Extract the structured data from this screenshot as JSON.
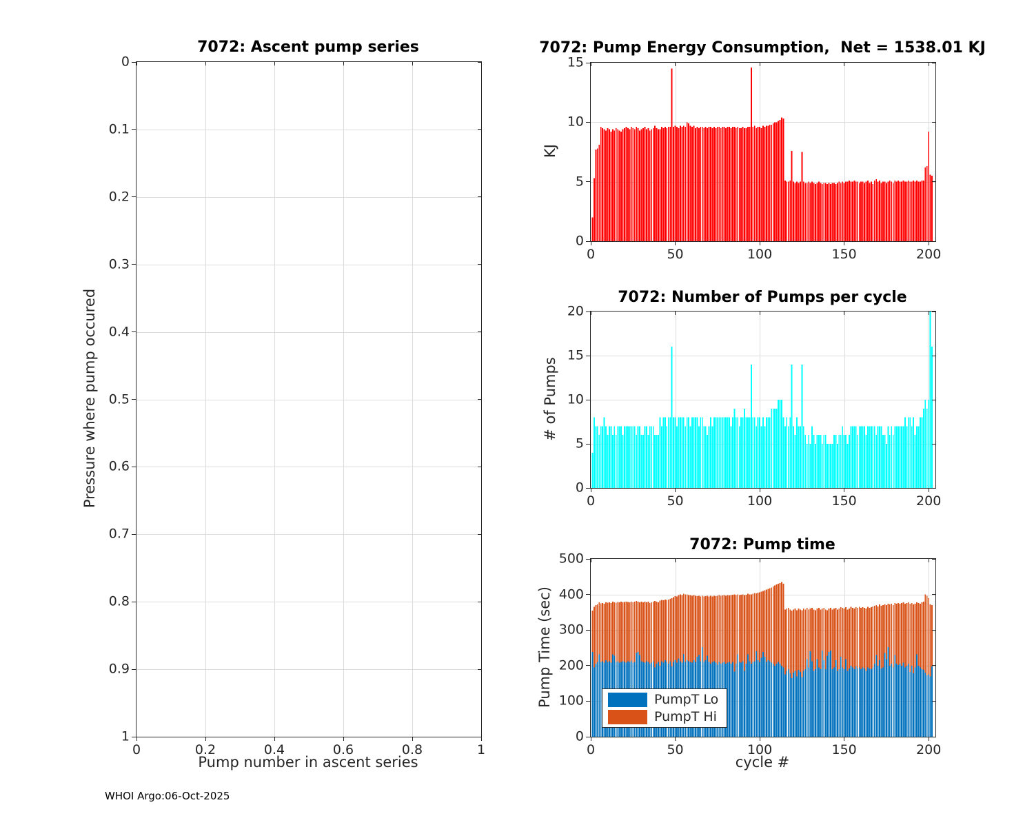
{
  "figure": {
    "footer": "WHOI Argo:06-Oct-2025"
  },
  "colors": {
    "red": "#ff0000",
    "cyan": "#00ffff",
    "blue": "#0072bd",
    "orange": "#d95319",
    "grid": "#dcdcdc",
    "axis": "#262626"
  },
  "chart_data": [
    {
      "id": "ascent",
      "type": "bar",
      "title": "7072: Ascent pump series",
      "xlabel": "Pump number in ascent series",
      "ylabel": "Pressure where pump occured",
      "xlim": [
        0,
        1
      ],
      "ylim": [
        0,
        1
      ],
      "y_reversed": true,
      "grid": true,
      "xticks": [
        0,
        0.2,
        0.4,
        0.6,
        0.8,
        1
      ],
      "yticks": [
        0,
        0.1,
        0.2,
        0.3,
        0.4,
        0.5,
        0.6,
        0.7,
        0.8,
        0.9,
        1
      ],
      "values": []
    },
    {
      "id": "energy",
      "type": "bar",
      "title": "7072: Pump Energy Consumption,  Net = 1538.01 KJ",
      "xlabel": "",
      "ylabel": "KJ",
      "color": "#ff0000",
      "xlim": [
        0,
        204
      ],
      "ylim": [
        0,
        15
      ],
      "grid": true,
      "xticks": [
        0,
        50,
        100,
        150,
        200
      ],
      "yticks": [
        0,
        5,
        10,
        15
      ],
      "values": [
        2.0,
        5.3,
        7.7,
        7.8,
        8.1,
        9.6,
        9.5,
        9.4,
        9.3,
        9.5,
        9.4,
        9.2,
        9.4,
        9.3,
        9.5,
        9.4,
        9.3,
        9.2,
        9.4,
        9.5,
        9.6,
        9.5,
        9.4,
        9.6,
        9.5,
        9.4,
        9.6,
        9.5,
        9.3,
        9.4,
        9.5,
        9.6,
        9.4,
        9.5,
        9.3,
        9.4,
        9.5,
        9.7,
        9.5,
        9.4,
        9.4,
        9.6,
        9.5,
        9.6,
        9.5,
        9.6,
        9.6,
        14.5,
        9.6,
        9.7,
        9.6,
        9.5,
        9.7,
        9.6,
        9.7,
        9.6,
        10.0,
        9.9,
        9.7,
        9.6,
        9.7,
        9.5,
        9.6,
        9.5,
        9.6,
        9.6,
        9.5,
        9.6,
        9.5,
        9.6,
        9.6,
        9.5,
        9.6,
        9.5,
        9.6,
        9.6,
        9.5,
        9.6,
        9.6,
        9.5,
        9.6,
        9.6,
        9.5,
        9.6,
        9.6,
        9.5,
        9.6,
        9.5,
        9.5,
        9.6,
        9.5,
        9.5,
        9.6,
        9.6,
        14.6,
        9.6,
        9.7,
        9.5,
        9.6,
        9.6,
        9.5,
        9.7,
        9.6,
        9.7,
        9.7,
        9.8,
        9.8,
        9.9,
        10.0,
        10.0,
        10.1,
        10.2,
        10.4,
        10.3,
        5.1,
        5.0,
        5.0,
        5.1,
        7.6,
        5.0,
        4.9,
        5.0,
        4.9,
        5.0,
        7.5,
        5.0,
        4.9,
        4.9,
        5.0,
        4.9,
        5.0,
        4.9,
        4.8,
        4.9,
        5.0,
        4.9,
        4.8,
        4.9,
        4.9,
        4.8,
        4.9,
        4.8,
        4.9,
        4.9,
        4.8,
        4.9,
        5.0,
        4.9,
        5.0,
        4.9,
        5.0,
        5.0,
        5.1,
        5.0,
        5.0,
        5.1,
        5.0,
        5.0,
        4.9,
        5.0,
        5.0,
        4.9,
        5.0,
        5.1,
        4.9,
        5.0,
        4.8,
        5.1,
        5.2,
        5.0,
        5.1,
        4.9,
        5.0,
        5.0,
        4.9,
        5.0,
        5.1,
        5.0,
        4.9,
        5.1,
        5.0,
        5.1,
        5.0,
        5.0,
        5.1,
        5.0,
        5.0,
        5.1,
        5.0,
        5.0,
        5.1,
        5.0,
        5.1,
        5.0,
        5.0,
        5.1,
        5.1,
        6.2,
        6.3,
        9.2,
        5.6,
        5.5
      ]
    },
    {
      "id": "pumps",
      "type": "bar",
      "title": "7072: Number of Pumps per cycle",
      "xlabel": "",
      "ylabel": "# of Pumps",
      "color": "#00ffff",
      "xlim": [
        0,
        204
      ],
      "ylim": [
        0,
        20
      ],
      "grid": true,
      "xticks": [
        0,
        50,
        100,
        150,
        200
      ],
      "yticks": [
        0,
        5,
        10,
        15,
        20
      ],
      "values": [
        4,
        8,
        7,
        7,
        6,
        7,
        7,
        8,
        7,
        6,
        7,
        7,
        6,
        7,
        6,
        7,
        7,
        7,
        6,
        7,
        7,
        7,
        7,
        7,
        7,
        7,
        6,
        7,
        7,
        6,
        6,
        7,
        7,
        6,
        7,
        7,
        7,
        6,
        6,
        6,
        8,
        7,
        8,
        8,
        7,
        8,
        8,
        16,
        8,
        8,
        7,
        8,
        8,
        8,
        8,
        7,
        8,
        8,
        7,
        8,
        8,
        8,
        8,
        7,
        8,
        8,
        7,
        7,
        6,
        7,
        8,
        7,
        8,
        8,
        8,
        8,
        8,
        8,
        8,
        8,
        8,
        8,
        7,
        8,
        9,
        8,
        8,
        7,
        8,
        8,
        9,
        8,
        8,
        8,
        14,
        8,
        8,
        7,
        8,
        8,
        7,
        8,
        7,
        8,
        8,
        8,
        9,
        9,
        9,
        9,
        10,
        10,
        10,
        8,
        7,
        8,
        7,
        8,
        14,
        7,
        6,
        8,
        7,
        7,
        14,
        7,
        6,
        5,
        6,
        5,
        7,
        6,
        5,
        6,
        6,
        6,
        5,
        6,
        6,
        5,
        5,
        5,
        5,
        6,
        6,
        5,
        6,
        6,
        7,
        6,
        6,
        5,
        6,
        7,
        7,
        7,
        7,
        6,
        7,
        7,
        7,
        7,
        6,
        7,
        7,
        7,
        7,
        7,
        6,
        7,
        7,
        7,
        6,
        6,
        5,
        7,
        6,
        7,
        6,
        7,
        7,
        7,
        7,
        7,
        7,
        8,
        7,
        8,
        8,
        7,
        8,
        6,
        7,
        7,
        8,
        8,
        9,
        10,
        9,
        10,
        20,
        16
      ]
    },
    {
      "id": "pumptime",
      "type": "stacked-bar",
      "title": "7072: Pump time",
      "xlabel": "cycle #",
      "ylabel": "Pump Time (sec)",
      "xlim": [
        0,
        204
      ],
      "ylim": [
        0,
        500
      ],
      "grid": true,
      "xticks": [
        0,
        50,
        100,
        150,
        200
      ],
      "yticks": [
        0,
        100,
        200,
        300,
        400,
        500
      ],
      "legend": [
        "PumpT Lo",
        "PumpT Hi"
      ],
      "legend_position": "lower-left",
      "series": [
        {
          "name": "PumpT Lo",
          "color": "#0072bd",
          "values": [
            238,
            195,
            205,
            210,
            232,
            210,
            212,
            208,
            215,
            210,
            212,
            208,
            232,
            228,
            210,
            212,
            208,
            210,
            212,
            210,
            208,
            212,
            210,
            214,
            208,
            210,
            235,
            238,
            230,
            212,
            210,
            208,
            212,
            210,
            205,
            208,
            212,
            195,
            205,
            210,
            200,
            212,
            208,
            215,
            210,
            205,
            212,
            198,
            210,
            215,
            208,
            220,
            212,
            208,
            233,
            210,
            215,
            212,
            210,
            208,
            215,
            210,
            225,
            230,
            212,
            252,
            210,
            215,
            228,
            210,
            205,
            210,
            212,
            208,
            203,
            210,
            205,
            208,
            210,
            205,
            208,
            210,
            205,
            210,
            183,
            205,
            232,
            210,
            208,
            212,
            185,
            205,
            232,
            212,
            205,
            210,
            212,
            240,
            215,
            210,
            222,
            238,
            225,
            210,
            215,
            212,
            208,
            205,
            200,
            205,
            210,
            205,
            200,
            195,
            175,
            185,
            190,
            178,
            165,
            180,
            185,
            170,
            188,
            182,
            168,
            185,
            190,
            218,
            195,
            240,
            212,
            185,
            190,
            218,
            195,
            190,
            242,
            215,
            190,
            228,
            238,
            242,
            190,
            195,
            215,
            185,
            190,
            225,
            195,
            190,
            218,
            185,
            192,
            200,
            195,
            190,
            198,
            192,
            195,
            190,
            195,
            192,
            185,
            195,
            192,
            190,
            195,
            205,
            230,
            200,
            215,
            192,
            195,
            235,
            218,
            252,
            200,
            205,
            195,
            230,
            205,
            202,
            205,
            200,
            208,
            195,
            200,
            205,
            182,
            200,
            178,
            195,
            232,
            200,
            195,
            190,
            188,
            180,
            172,
            175,
            170,
            198
          ]
        },
        {
          "name": "PumpT Hi",
          "color": "#d95319",
          "values": [
            117,
            170,
            165,
            162,
            146,
            165,
            164,
            166,
            163,
            167,
            166,
            168,
            148,
            150,
            167,
            167,
            170,
            170,
            166,
            169,
            172,
            167,
            168,
            166,
            170,
            170,
            147,
            142,
            148,
            168,
            168,
            172,
            166,
            170,
            171,
            170,
            168,
            187,
            175,
            168,
            183,
            173,
            176,
            171,
            175,
            181,
            176,
            192,
            182,
            180,
            186,
            178,
            188,
            190,
            169,
            190,
            185,
            186,
            188,
            188,
            183,
            186,
            170,
            166,
            182,
            144,
            184,
            180,
            168,
            184,
            191,
            184,
            184,
            187,
            193,
            188,
            191,
            189,
            188,
            191,
            190,
            187,
            193,
            189,
            217,
            193,
            168,
            188,
            191,
            188,
            213,
            194,
            170,
            188,
            195,
            192,
            192,
            163,
            190,
            196,
            186,
            172,
            187,
            204,
            201,
            206,
            212,
            217,
            225,
            223,
            220,
            227,
            235,
            235,
            183,
            175,
            172,
            180,
            190,
            178,
            175,
            186,
            172,
            176,
            188,
            175,
            168,
            144,
            163,
            120,
            150,
            173,
            166,
            142,
            167,
            168,
            118,
            147,
            168,
            128,
            122,
            120,
            168,
            165,
            147,
            173,
            170,
            139,
            167,
            170,
            146,
            173,
            168,
            165,
            167,
            170,
            166,
            170,
            170,
            172,
            169,
            170,
            175,
            170,
            170,
            174,
            171,
            163,
            140,
            166,
            157,
            176,
            175,
            137,
            152,
            122,
            172,
            169,
            175,
            146,
            169,
            174,
            169,
            176,
            170,
            179,
            176,
            173,
            192,
            176,
            194,
            179,
            146,
            176,
            179,
            188,
            192,
            220,
            224,
            215,
            202,
            172
          ]
        }
      ]
    }
  ]
}
